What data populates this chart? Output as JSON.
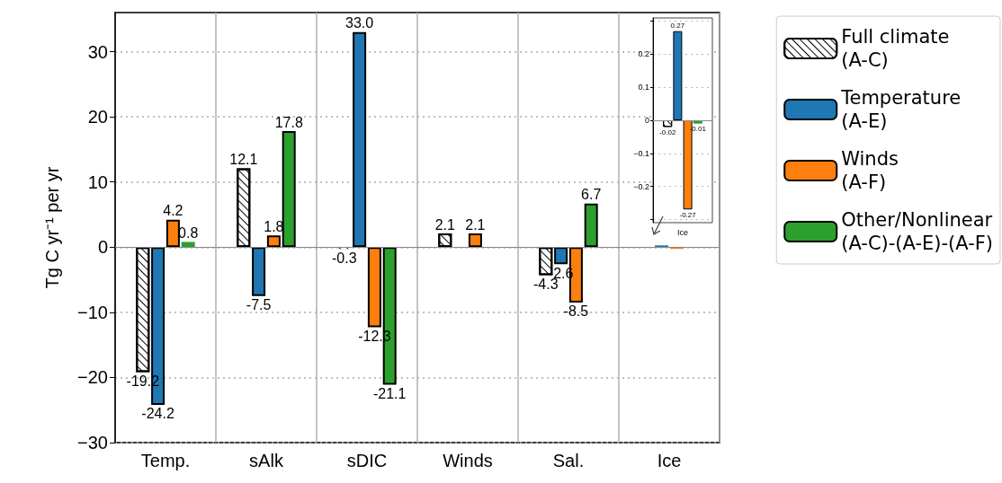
{
  "chart_data": [
    {
      "type": "bar",
      "ylabel": "Tg C yr⁻¹ per yr",
      "categories": [
        "Temp.",
        "sAlk",
        "sDIC",
        "Winds",
        "Sal.",
        "Ice"
      ],
      "series": [
        {
          "name": "Full climate\n(A-C)",
          "color": "#ffffff",
          "values": [
            -19.2,
            12.1,
            -0.3,
            2.1,
            -4.3,
            -0.02
          ],
          "value_labels": [
            "-19.2",
            "12.1",
            "-0.3",
            "2.1",
            "-4.3",
            null
          ]
        },
        {
          "name": "Temperature\n(A-E)",
          "color": "#1f77b4",
          "values": [
            -24.2,
            -7.5,
            33.0,
            0,
            -2.6,
            0.27
          ],
          "value_labels": [
            "-24.2",
            "-7.5",
            "33.0",
            null,
            "-2.6",
            null
          ]
        },
        {
          "name": "Winds\n(A-F)",
          "color": "#ff7f0e",
          "values": [
            4.2,
            1.8,
            -12.3,
            2.1,
            -8.5,
            -0.27
          ],
          "value_labels": [
            "4.2",
            "1.8",
            "-12.3",
            "2.1",
            "-8.5",
            null
          ]
        },
        {
          "name": "Other/Nonlinear\n(A-C)-(A-E)-(A-F)",
          "color": "#2ca02c",
          "values": [
            0.8,
            17.8,
            -21.1,
            0,
            6.7,
            -0.01
          ],
          "value_labels": [
            "0.8",
            "17.8",
            "-21.1",
            null,
            "6.7",
            null
          ]
        }
      ],
      "ylim": [
        -30,
        36
      ],
      "yticks": [
        -30,
        -20,
        -10,
        0,
        10,
        20,
        30
      ],
      "grid": true,
      "legend": "right"
    },
    {
      "type": "bar",
      "categories": [
        "Ice"
      ],
      "series": [
        {
          "color": "#ffffff",
          "values": [
            -0.02
          ]
        },
        {
          "color": "#1f77b4",
          "values": [
            0.27
          ]
        },
        {
          "color": "#ff7f0e",
          "values": [
            -0.27
          ]
        },
        {
          "color": "#2ca02c",
          "values": [
            -0.01
          ]
        }
      ],
      "ylim": [
        -0.31,
        0.31
      ],
      "yticks": [
        {
          "value": -0.3,
          "label": null
        },
        -0.2,
        -0.1,
        0.0,
        0.1,
        0.2,
        {
          "value": 0.3,
          "label": null
        }
      ],
      "grid": "y",
      "data_labels": true
    }
  ]
}
